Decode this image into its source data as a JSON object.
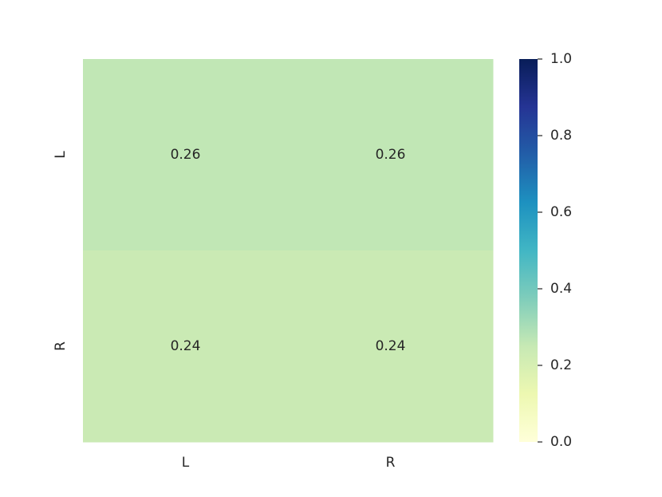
{
  "chart_data": {
    "type": "heatmap",
    "x_categories": [
      "L",
      "R"
    ],
    "y_categories": [
      "L",
      "R"
    ],
    "values": [
      [
        0.26,
        0.26
      ],
      [
        0.24,
        0.24
      ]
    ],
    "colormap": "YlGnBu",
    "clim": [
      0,
      1
    ],
    "cticks": [
      {
        "value": 0,
        "label": "0.0"
      },
      0.2,
      0.4,
      0.6,
      0.8,
      {
        "value": 1,
        "label": "1.0"
      }
    ]
  }
}
